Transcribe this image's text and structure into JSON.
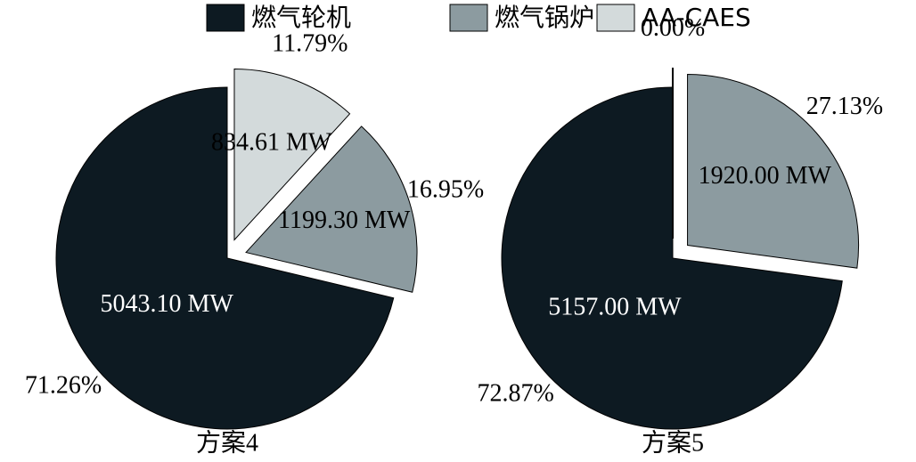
{
  "legend": {
    "labels": [
      "燃气轮机",
      "燃气锅炉",
      "AA-CAES"
    ],
    "colors": [
      "#0d1a22",
      "#8c9ba0",
      "#d3dadb"
    ]
  },
  "chart_data": [
    {
      "type": "pie",
      "title": "方案4",
      "values": [
        5043.1,
        1199.3,
        834.61
      ],
      "value_labels": [
        "5043.10 MW",
        "1199.30 MW",
        "834.61 MW"
      ],
      "percent_labels": [
        "71.26%",
        "16.95%",
        "11.79%"
      ],
      "exploded": [
        false,
        true,
        true
      ]
    },
    {
      "type": "pie",
      "title": "方案5",
      "values": [
        5157.0,
        1920.0,
        0
      ],
      "value_labels": [
        "5157.00 MW",
        "1920.00 MW",
        null
      ],
      "percent_labels": [
        "72.87%",
        "27.13%",
        "0.00%"
      ],
      "exploded": [
        false,
        true,
        true
      ]
    }
  ]
}
